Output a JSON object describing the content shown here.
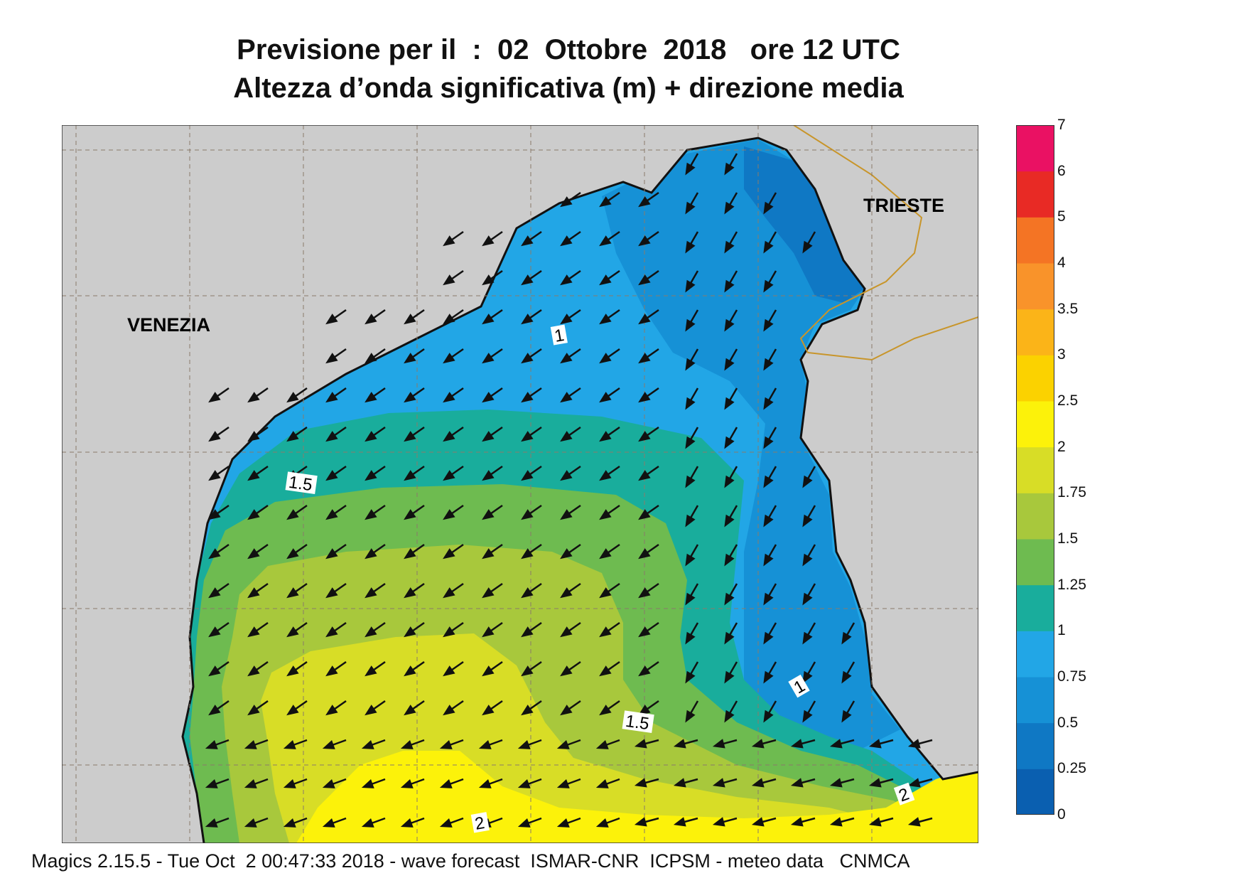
{
  "title": {
    "line1": "Previsione per il  :  02  Ottobre  2018   ore 12 UTC",
    "line2": "Altezza d’onda significativa (m) + direzione media"
  },
  "map": {
    "labels": {
      "venezia": "VENEZIA",
      "trieste": "TRIESTE"
    },
    "contour_labels": [
      "1",
      "1.5",
      "1.5",
      "1",
      "2",
      "2"
    ]
  },
  "colorbar": {
    "ticks": [
      "0",
      "0.25",
      "0.5",
      "0.75",
      "1",
      "1.25",
      "1.5",
      "1.75",
      "2",
      "2.5",
      "3",
      "3.5",
      "4",
      "5",
      "6",
      "7"
    ],
    "colors": [
      "#0a5fb0",
      "#0f78c4",
      "#1691d6",
      "#22a6e6",
      "#19ad9c",
      "#6ebb50",
      "#a8c83c",
      "#d8dd26",
      "#fcf20a",
      "#fbd200",
      "#fbb418",
      "#f9932a",
      "#f47424",
      "#e82a25",
      "#ea1163"
    ]
  },
  "land_color": "#cccccc",
  "footer": "Magics 2.15.5 - Tue Oct  2 00:47:33 2018 - wave forecast  ISMAR-CNR  ICPSM - meteo data   CNMCA"
}
